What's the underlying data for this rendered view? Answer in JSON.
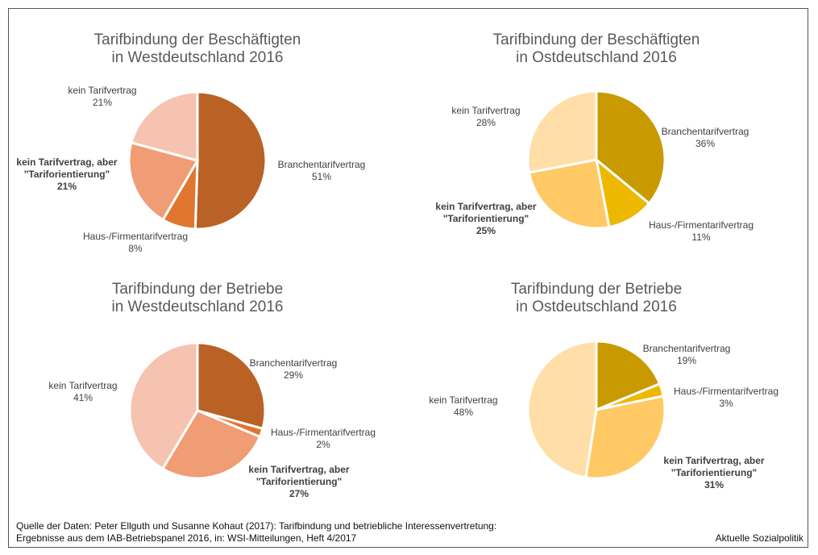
{
  "chart_data": [
    {
      "type": "pie",
      "title": [
        "Tarifbindung der Beschäftigten",
        "in Westdeutschland 2016"
      ],
      "slices": [
        {
          "label": "Branchentarifvertrag",
          "value": 51,
          "pct": "51%",
          "color": "#BA6125"
        },
        {
          "label": "Haus-/Firmentarifvertrag",
          "value": 8,
          "pct": "8%",
          "color": "#E0762F"
        },
        {
          "label": [
            "kein Tarifvertrag, aber",
            "\"Tariforientierung\""
          ],
          "value": 21,
          "pct": "21%",
          "color": "#F09C74",
          "bold": true
        },
        {
          "label": "kein Tarifvertrag",
          "value": 21,
          "pct": "21%",
          "color": "#F5C3B0"
        }
      ]
    },
    {
      "type": "pie",
      "title": [
        "Tarifbindung der Beschäftigten",
        "in Ostdeutschland 2016"
      ],
      "slices": [
        {
          "label": "Branchentarifvertrag",
          "value": 36,
          "pct": "36%",
          "color": "#C99A00"
        },
        {
          "label": "Haus-/Firmentarifvertrag",
          "value": 11,
          "pct": "11%",
          "color": "#EDB800"
        },
        {
          "label": [
            "kein Tarifvertrag, aber",
            "\"Tariforientierung\""
          ],
          "value": 25,
          "pct": "25%",
          "color": "#FFC966",
          "bold": true
        },
        {
          "label": "kein Tarifvertrag",
          "value": 28,
          "pct": "28%",
          "color": "#FFDEA8"
        }
      ]
    },
    {
      "type": "pie",
      "title": [
        "Tarifbindung der Betriebe",
        "in Westdeutschland 2016"
      ],
      "slices": [
        {
          "label": "Branchentarifvertrag",
          "value": 29,
          "pct": "29%",
          "color": "#BA6125"
        },
        {
          "label": "Haus-/Firmentarifvertrag",
          "value": 2,
          "pct": "2%",
          "color": "#E0762F"
        },
        {
          "label": [
            "kein Tarifvertrag, aber",
            "\"Tariforientierung\""
          ],
          "value": 27,
          "pct": "27%",
          "color": "#F09C74",
          "bold": true
        },
        {
          "label": "kein Tarifvertrag",
          "value": 41,
          "pct": "41%",
          "color": "#F5C3B0"
        }
      ]
    },
    {
      "type": "pie",
      "title": [
        "Tarifbindung der Betriebe",
        "in Ostdeutschland 2016"
      ],
      "slices": [
        {
          "label": "Branchentarifvertrag",
          "value": 19,
          "pct": "19%",
          "color": "#C99A00"
        },
        {
          "label": "Haus-/Firmentarifvertrag",
          "value": 3,
          "pct": "3%",
          "color": "#EDB800"
        },
        {
          "label": [
            "kein Tarifvertrag, aber",
            "\"Tariforientierung\""
          ],
          "value": 31,
          "pct": "31%",
          "color": "#FFC966",
          "bold": true
        },
        {
          "label": "kein Tarifvertrag",
          "value": 48,
          "pct": "48%",
          "color": "#FFDEA8"
        }
      ]
    }
  ],
  "footer": {
    "source_line1": "Quelle der Daten: Peter Ellguth und Susanne Kohaut (2017): Tarifbindung und betriebliche Interessenvertretung:",
    "source_line2": "Ergebnisse aus dem IAB-Betriebspanel 2016, in: WSI-Mitteilungen, Heft 4/2017",
    "brand": "Aktuelle Sozialpolitik"
  }
}
